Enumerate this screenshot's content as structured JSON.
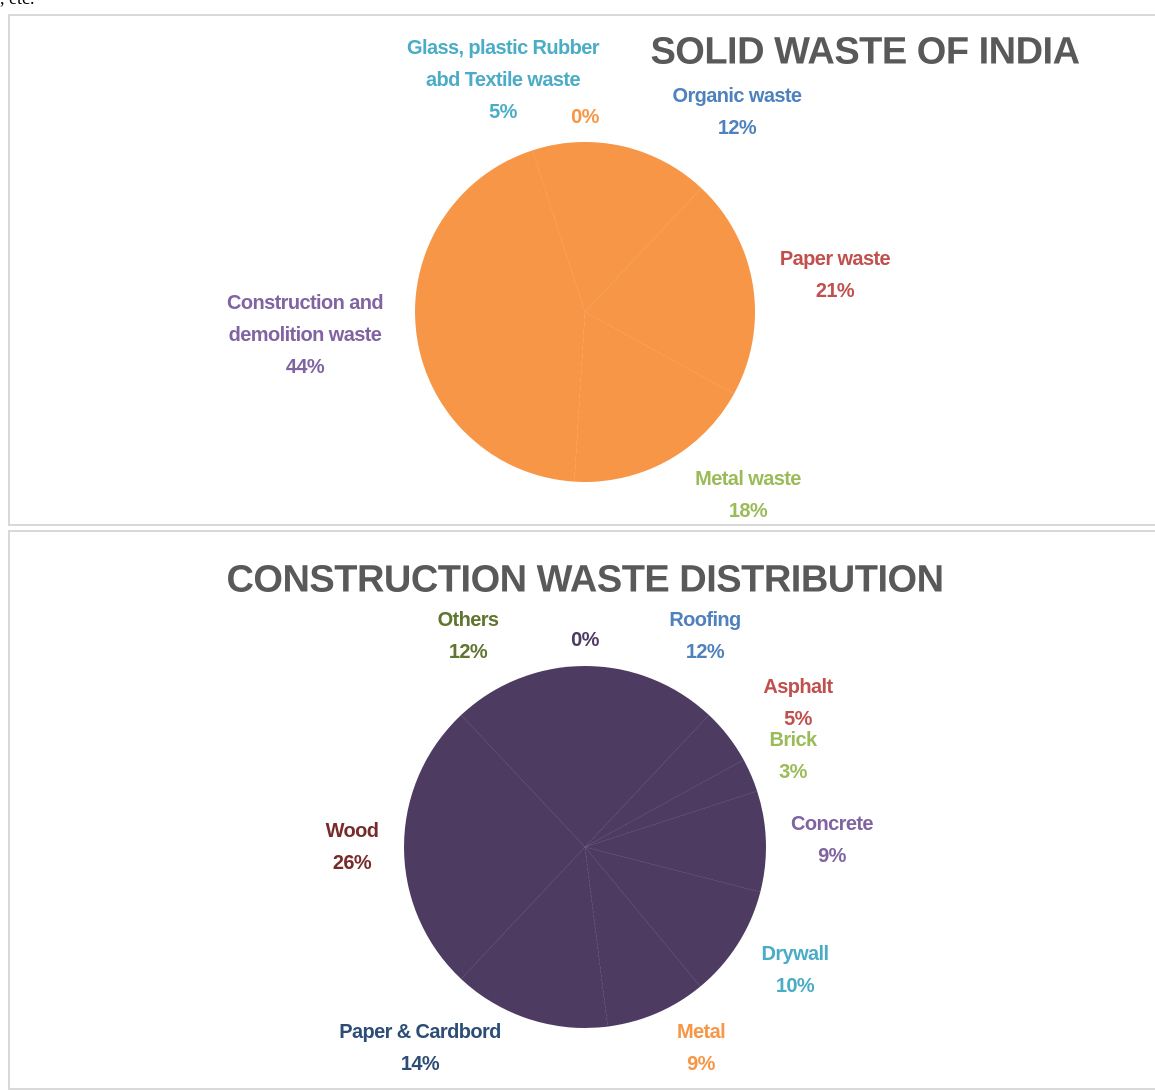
{
  "page_fragment": ", etc.",
  "chart_data": [
    {
      "type": "pie",
      "title": "SOLID WASTE OF INDIA",
      "categories": [
        "Organic waste",
        "Paper waste",
        "Metal waste",
        "Construction and demolition waste",
        "Glass, plastic Rubber abd Textile waste",
        null
      ],
      "values": [
        12,
        21,
        18,
        44,
        5,
        0
      ],
      "value_labels": [
        "12%",
        "21%",
        "18%",
        "44%",
        "5%",
        "0%"
      ],
      "color": "#f79646",
      "label_colors": [
        "#4f81bd",
        "#c0504d",
        "#9bbb59",
        "#8064a2",
        "#4bacc6",
        "#f79646"
      ]
    },
    {
      "type": "pie",
      "title": "CONSTRUCTION WASTE DISTRIBUTION",
      "categories": [
        "Roofing",
        "Asphalt",
        "Brick",
        "Concrete",
        "Drywall",
        "Metal",
        "Paper & Cardbord",
        "Wood",
        "Others",
        null
      ],
      "values": [
        12,
        5,
        3,
        9,
        10,
        9,
        14,
        26,
        12,
        0
      ],
      "value_labels": [
        "12%",
        "5%",
        "3%",
        "9%",
        "10%",
        "9%",
        "14%",
        "26%",
        "12%",
        "0%"
      ],
      "color": "#4d3b62",
      "label_colors": [
        "#4f81bd",
        "#c0504d",
        "#9bbb59",
        "#8064a2",
        "#4bacc6",
        "#f79646",
        "#2c4d75",
        "#772c2a",
        "#5f7530",
        "#4d3b62"
      ]
    }
  ]
}
